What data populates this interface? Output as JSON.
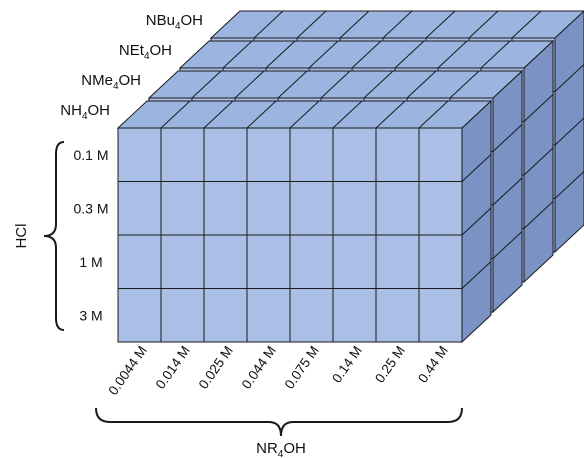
{
  "colors": {
    "front": "#a9bfe6",
    "top": "#9bb4e0",
    "side": "#7a92c4",
    "edge": "#1a1a1a"
  },
  "bases": [
    {
      "prefix": "NBu",
      "sub": "4",
      "suffix": "OH"
    },
    {
      "prefix": "NEt",
      "sub": "4",
      "suffix": "OH"
    },
    {
      "prefix": "NMe",
      "sub": "4",
      "suffix": "OH"
    },
    {
      "prefix": "NH",
      "sub": "4",
      "suffix": "OH"
    }
  ],
  "hcl": {
    "axis_label": "HCl",
    "concentrations": [
      "0.1 M",
      "0.3 M",
      "1 M",
      "3 M"
    ]
  },
  "nr4oh": {
    "axis_prefix": "NR",
    "axis_sub": "4",
    "axis_suffix": "OH",
    "concentrations": [
      "0.0044 M",
      "0.014 M",
      "0.025 M",
      "0.044 M",
      "0.075 M",
      "0.14 M",
      "0.25 M",
      "0.44 M"
    ]
  }
}
